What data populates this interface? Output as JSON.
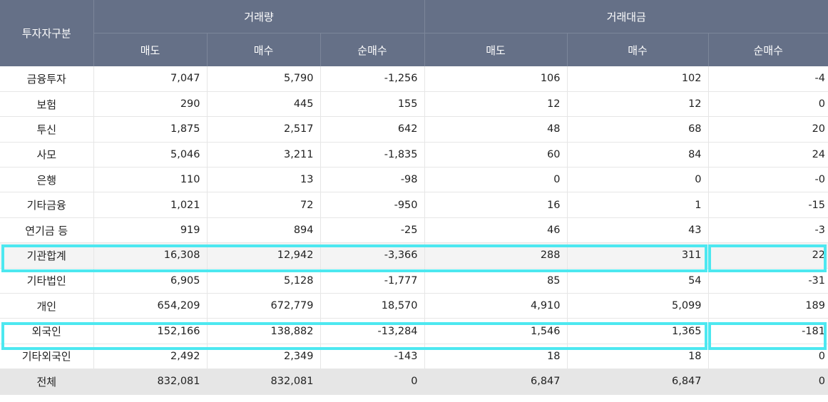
{
  "header": {
    "investor_type": "투자자구분",
    "group_volume": "거래량",
    "group_value": "거래대금",
    "sell": "매도",
    "buy": "매수",
    "net": "순매수"
  },
  "rows": [
    {
      "label": "금융투자",
      "v": [
        "7,047",
        "5,790",
        "-1,256",
        "106",
        "102",
        "-4"
      ]
    },
    {
      "label": "보험",
      "v": [
        "290",
        "445",
        "155",
        "12",
        "12",
        "0"
      ]
    },
    {
      "label": "투신",
      "v": [
        "1,875",
        "2,517",
        "642",
        "48",
        "68",
        "20"
      ]
    },
    {
      "label": "사모",
      "v": [
        "5,046",
        "3,211",
        "-1,835",
        "60",
        "84",
        "24"
      ]
    },
    {
      "label": "은행",
      "v": [
        "110",
        "13",
        "-98",
        "0",
        "0",
        "-0"
      ]
    },
    {
      "label": "기타금융",
      "v": [
        "1,021",
        "72",
        "-950",
        "16",
        "1",
        "-15"
      ]
    },
    {
      "label": "연기금 등",
      "v": [
        "919",
        "894",
        "-25",
        "46",
        "43",
        "-3"
      ]
    },
    {
      "label": "기관합계",
      "v": [
        "16,308",
        "12,942",
        "-3,366",
        "288",
        "311",
        "22"
      ]
    },
    {
      "label": "기타법인",
      "v": [
        "6,905",
        "5,128",
        "-1,777",
        "85",
        "54",
        "-31"
      ]
    },
    {
      "label": "개인",
      "v": [
        "654,209",
        "672,779",
        "18,570",
        "4,910",
        "5,099",
        "189"
      ]
    },
    {
      "label": "외국인",
      "v": [
        "152,166",
        "138,882",
        "-13,284",
        "1,546",
        "1,365",
        "-181"
      ]
    },
    {
      "label": "기타외국인",
      "v": [
        "2,492",
        "2,349",
        "-143",
        "18",
        "18",
        "0"
      ]
    },
    {
      "label": "전체",
      "v": [
        "832,081",
        "832,081",
        "0",
        "6,847",
        "6,847",
        "0"
      ]
    }
  ],
  "highlight_color": "#4de8f0"
}
